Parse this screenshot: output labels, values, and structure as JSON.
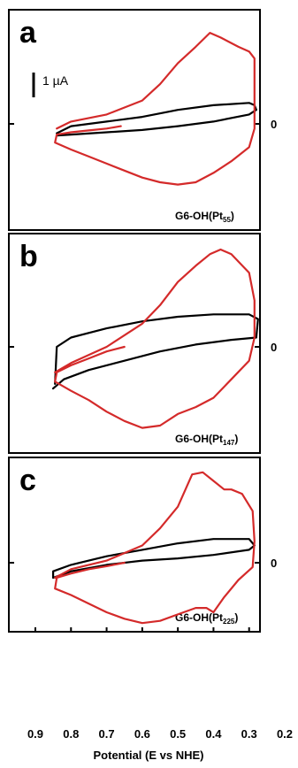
{
  "figure": {
    "xaxis_label": "Potential (E vs NHE)",
    "x_ticks": [
      "0.9",
      "0.8",
      "0.7",
      "0.6",
      "0.5",
      "0.4",
      "0.3",
      "0.2"
    ],
    "scale_bar_label": "1 µA",
    "zero_label": "0"
  },
  "colors": {
    "red_trace": "#d42a2a",
    "black_trace": "#000000",
    "frame": "#000000"
  },
  "chart_data": [
    {
      "type": "line",
      "panel_letter": "a",
      "sample_label": {
        "main": "G6-OH(Pt",
        "sub": "55",
        "close": ")"
      },
      "xlabel": "Potential (E vs NHE)",
      "xlim": [
        0.9,
        0.2
      ],
      "y_unit": "µA",
      "ylim": [
        -2.0,
        2.2
      ],
      "series": [
        {
          "color": "black",
          "points": [
            [
              0.84,
              -0.2
            ],
            [
              0.8,
              -0.05
            ],
            [
              0.7,
              0.05
            ],
            [
              0.6,
              0.15
            ],
            [
              0.5,
              0.3
            ],
            [
              0.4,
              0.4
            ],
            [
              0.3,
              0.45
            ],
            [
              0.285,
              0.4
            ],
            [
              0.28,
              0.3
            ],
            [
              0.3,
              0.2
            ],
            [
              0.4,
              0.05
            ],
            [
              0.5,
              -0.05
            ],
            [
              0.6,
              -0.13
            ],
            [
              0.7,
              -0.18
            ],
            [
              0.8,
              -0.23
            ],
            [
              0.84,
              -0.25
            ]
          ]
        },
        {
          "color": "red",
          "points": [
            [
              0.66,
              -0.05
            ],
            [
              0.7,
              -0.1
            ],
            [
              0.75,
              -0.14
            ],
            [
              0.8,
              -0.18
            ],
            [
              0.84,
              -0.23
            ],
            [
              0.845,
              -0.4
            ],
            [
              0.8,
              -0.55
            ],
            [
              0.75,
              -0.7
            ],
            [
              0.7,
              -0.85
            ],
            [
              0.65,
              -1.0
            ],
            [
              0.6,
              -1.15
            ],
            [
              0.55,
              -1.25
            ],
            [
              0.5,
              -1.3
            ],
            [
              0.45,
              -1.25
            ],
            [
              0.4,
              -1.05
            ],
            [
              0.35,
              -0.8
            ],
            [
              0.3,
              -0.5
            ],
            [
              0.285,
              -0.1
            ],
            [
              0.285,
              0.6
            ],
            [
              0.285,
              1.4
            ],
            [
              0.3,
              1.55
            ],
            [
              0.33,
              1.65
            ],
            [
              0.38,
              1.85
            ],
            [
              0.41,
              1.95
            ],
            [
              0.45,
              1.65
            ],
            [
              0.5,
              1.3
            ],
            [
              0.55,
              0.85
            ],
            [
              0.6,
              0.5
            ],
            [
              0.7,
              0.2
            ],
            [
              0.8,
              0.05
            ],
            [
              0.84,
              -0.1
            ]
          ]
        }
      ]
    },
    {
      "type": "line",
      "panel_letter": "b",
      "sample_label": {
        "main": "G6-OH(Pt",
        "sub": "147",
        "close": ")"
      },
      "xlabel": "Potential (E vs NHE)",
      "xlim": [
        0.9,
        0.2
      ],
      "y_unit": "µA",
      "ylim": [
        -2.0,
        2.2
      ],
      "series": [
        {
          "color": "black",
          "points": [
            [
              0.85,
              -0.9
            ],
            [
              0.82,
              -0.7
            ],
            [
              0.75,
              -0.5
            ],
            [
              0.65,
              -0.3
            ],
            [
              0.55,
              -0.1
            ],
            [
              0.45,
              0.05
            ],
            [
              0.35,
              0.15
            ],
            [
              0.28,
              0.2
            ],
            [
              0.275,
              0.6
            ],
            [
              0.3,
              0.7
            ],
            [
              0.4,
              0.7
            ],
            [
              0.5,
              0.65
            ],
            [
              0.6,
              0.55
            ],
            [
              0.7,
              0.4
            ],
            [
              0.8,
              0.2
            ],
            [
              0.84,
              0.0
            ],
            [
              0.845,
              -0.8
            ]
          ]
        },
        {
          "color": "red",
          "points": [
            [
              0.65,
              0.0
            ],
            [
              0.7,
              -0.1
            ],
            [
              0.75,
              -0.25
            ],
            [
              0.8,
              -0.4
            ],
            [
              0.84,
              -0.55
            ],
            [
              0.845,
              -0.75
            ],
            [
              0.8,
              -0.95
            ],
            [
              0.75,
              -1.15
            ],
            [
              0.7,
              -1.4
            ],
            [
              0.65,
              -1.6
            ],
            [
              0.6,
              -1.75
            ],
            [
              0.55,
              -1.7
            ],
            [
              0.5,
              -1.45
            ],
            [
              0.45,
              -1.3
            ],
            [
              0.4,
              -1.1
            ],
            [
              0.35,
              -0.7
            ],
            [
              0.3,
              -0.3
            ],
            [
              0.285,
              0.2
            ],
            [
              0.285,
              1.0
            ],
            [
              0.3,
              1.6
            ],
            [
              0.35,
              2.0
            ],
            [
              0.38,
              2.1
            ],
            [
              0.41,
              2.0
            ],
            [
              0.45,
              1.75
            ],
            [
              0.5,
              1.4
            ],
            [
              0.55,
              0.9
            ],
            [
              0.6,
              0.5
            ],
            [
              0.7,
              0.0
            ],
            [
              0.8,
              -0.35
            ],
            [
              0.845,
              -0.55
            ]
          ]
        }
      ]
    },
    {
      "type": "line",
      "panel_letter": "c",
      "sample_label": {
        "main": "G6-OH(Pt",
        "sub": "225",
        "close": ")"
      },
      "xlabel": "Potential (E vs NHE)",
      "xlim": [
        0.9,
        0.2
      ],
      "y_unit": "µA",
      "ylim": [
        -2.0,
        2.2
      ],
      "series": [
        {
          "color": "black",
          "points": [
            [
              0.85,
              -0.35
            ],
            [
              0.8,
              -0.2
            ],
            [
              0.7,
              -0.05
            ],
            [
              0.6,
              0.05
            ],
            [
              0.5,
              0.1
            ],
            [
              0.4,
              0.18
            ],
            [
              0.3,
              0.3
            ],
            [
              0.285,
              0.4
            ],
            [
              0.3,
              0.55
            ],
            [
              0.4,
              0.55
            ],
            [
              0.5,
              0.45
            ],
            [
              0.6,
              0.3
            ],
            [
              0.7,
              0.15
            ],
            [
              0.8,
              -0.05
            ],
            [
              0.85,
              -0.2
            ],
            [
              0.85,
              -0.35
            ]
          ]
        },
        {
          "color": "red",
          "points": [
            [
              0.65,
              0.0
            ],
            [
              0.7,
              -0.08
            ],
            [
              0.75,
              -0.15
            ],
            [
              0.8,
              -0.25
            ],
            [
              0.84,
              -0.35
            ],
            [
              0.845,
              -0.6
            ],
            [
              0.8,
              -0.75
            ],
            [
              0.75,
              -0.95
            ],
            [
              0.7,
              -1.15
            ],
            [
              0.65,
              -1.3
            ],
            [
              0.6,
              -1.4
            ],
            [
              0.55,
              -1.35
            ],
            [
              0.5,
              -1.2
            ],
            [
              0.45,
              -1.05
            ],
            [
              0.42,
              -1.05
            ],
            [
              0.4,
              -1.15
            ],
            [
              0.37,
              -0.8
            ],
            [
              0.33,
              -0.4
            ],
            [
              0.29,
              -0.1
            ],
            [
              0.285,
              0.5
            ],
            [
              0.29,
              1.2
            ],
            [
              0.32,
              1.6
            ],
            [
              0.35,
              1.7
            ],
            [
              0.37,
              1.7
            ],
            [
              0.4,
              1.9
            ],
            [
              0.43,
              2.1
            ],
            [
              0.46,
              2.05
            ],
            [
              0.5,
              1.3
            ],
            [
              0.55,
              0.8
            ],
            [
              0.6,
              0.4
            ],
            [
              0.7,
              0.05
            ],
            [
              0.8,
              -0.15
            ],
            [
              0.845,
              -0.35
            ]
          ]
        }
      ]
    }
  ]
}
